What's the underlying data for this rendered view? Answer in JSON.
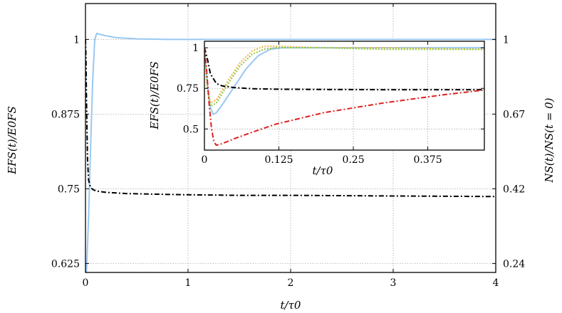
{
  "chart_data": [
    {
      "type": "line",
      "xlabel": "t/τ0",
      "ylabel": "EFS(t)/E0FS",
      "ylabel_right": "NS(t)/NS(t = 0)",
      "xlim": [
        0,
        4
      ],
      "ylim": [
        0.61,
        1.06
      ],
      "x_ticks": [
        "0",
        "1",
        "2",
        "3",
        "4"
      ],
      "y_ticks": [
        "0.625",
        "0.75",
        "0.875",
        "1"
      ],
      "y2_ticks": [
        "0.24",
        "0.42",
        "0.67",
        "1"
      ],
      "grid": true,
      "series": [
        {
          "color": "#99c8f2",
          "dash": "solid",
          "x": [
            0,
            0.01,
            0.03,
            0.05,
            0.07,
            0.09,
            0.11,
            0.15,
            0.2,
            0.3,
            0.5,
            0.8,
            1.2,
            2,
            3,
            4
          ],
          "y": [
            0.61,
            0.61,
            0.7,
            0.82,
            0.93,
            1.0,
            1.01,
            1.008,
            1.006,
            1.003,
            1.001,
            1.0,
            1.0,
            1.0,
            1.0,
            1.0
          ]
        },
        {
          "color": "#000000",
          "dash": "dashdot",
          "x": [
            0,
            0.005,
            0.01,
            0.02,
            0.03,
            0.05,
            0.08,
            0.12,
            0.2,
            0.4,
            0.7,
            1.0,
            1.5,
            2,
            3,
            4
          ],
          "y": [
            1.0,
            0.97,
            0.9,
            0.8,
            0.765,
            0.752,
            0.748,
            0.746,
            0.744,
            0.742,
            0.741,
            0.74,
            0.739,
            0.739,
            0.738,
            0.737
          ]
        }
      ]
    },
    {
      "type": "line",
      "xlabel": "t/τ0",
      "ylabel": "EFS(t)/E0FS",
      "xlim": [
        0,
        0.47
      ],
      "ylim": [
        0.37,
        1.04
      ],
      "x_ticks": [
        "0",
        "0.125",
        "0.25",
        "0.375"
      ],
      "y_ticks": [
        "0.5",
        "0.75",
        "1"
      ],
      "grid": true,
      "series": [
        {
          "color": "#99c8f2",
          "dash": "solid",
          "x": [
            0,
            0.005,
            0.01,
            0.015,
            0.02,
            0.03,
            0.05,
            0.07,
            0.09,
            0.11,
            0.13,
            0.2,
            0.3,
            0.47
          ],
          "y": [
            1.0,
            0.78,
            0.63,
            0.59,
            0.6,
            0.65,
            0.76,
            0.87,
            0.95,
            0.99,
            1.0,
            1.0,
            1.0,
            1.0
          ]
        },
        {
          "color": "#f0b840",
          "dash": "dotted",
          "x": [
            0,
            0.005,
            0.01,
            0.02,
            0.04,
            0.06,
            0.08,
            0.1,
            0.12,
            0.2,
            0.3,
            0.47
          ],
          "y": [
            1.0,
            0.75,
            0.66,
            0.68,
            0.8,
            0.91,
            0.98,
            1.01,
            1.01,
            1.0,
            1.0,
            0.99
          ]
        },
        {
          "color": "#8ec63f",
          "dash": "dotted",
          "x": [
            0,
            0.005,
            0.01,
            0.02,
            0.04,
            0.06,
            0.08,
            0.1,
            0.12,
            0.2,
            0.3,
            0.47
          ],
          "y": [
            1.0,
            0.74,
            0.64,
            0.66,
            0.78,
            0.89,
            0.96,
            0.99,
            1.0,
            1.0,
            0.99,
            0.99
          ]
        },
        {
          "color": "#000000",
          "dash": "dashdot",
          "x": [
            0,
            0.005,
            0.01,
            0.02,
            0.03,
            0.05,
            0.08,
            0.12,
            0.2,
            0.3,
            0.47
          ],
          "y": [
            1.0,
            0.93,
            0.84,
            0.78,
            0.765,
            0.755,
            0.748,
            0.745,
            0.743,
            0.742,
            0.742
          ]
        },
        {
          "color": "#e02020",
          "dash": "dashdot",
          "x": [
            0,
            0.004,
            0.008,
            0.012,
            0.016,
            0.02,
            0.03,
            0.05,
            0.08,
            0.12,
            0.2,
            0.3,
            0.4,
            0.47
          ],
          "y": [
            1.0,
            0.85,
            0.65,
            0.5,
            0.42,
            0.4,
            0.41,
            0.44,
            0.48,
            0.53,
            0.6,
            0.66,
            0.71,
            0.74
          ]
        }
      ]
    }
  ]
}
